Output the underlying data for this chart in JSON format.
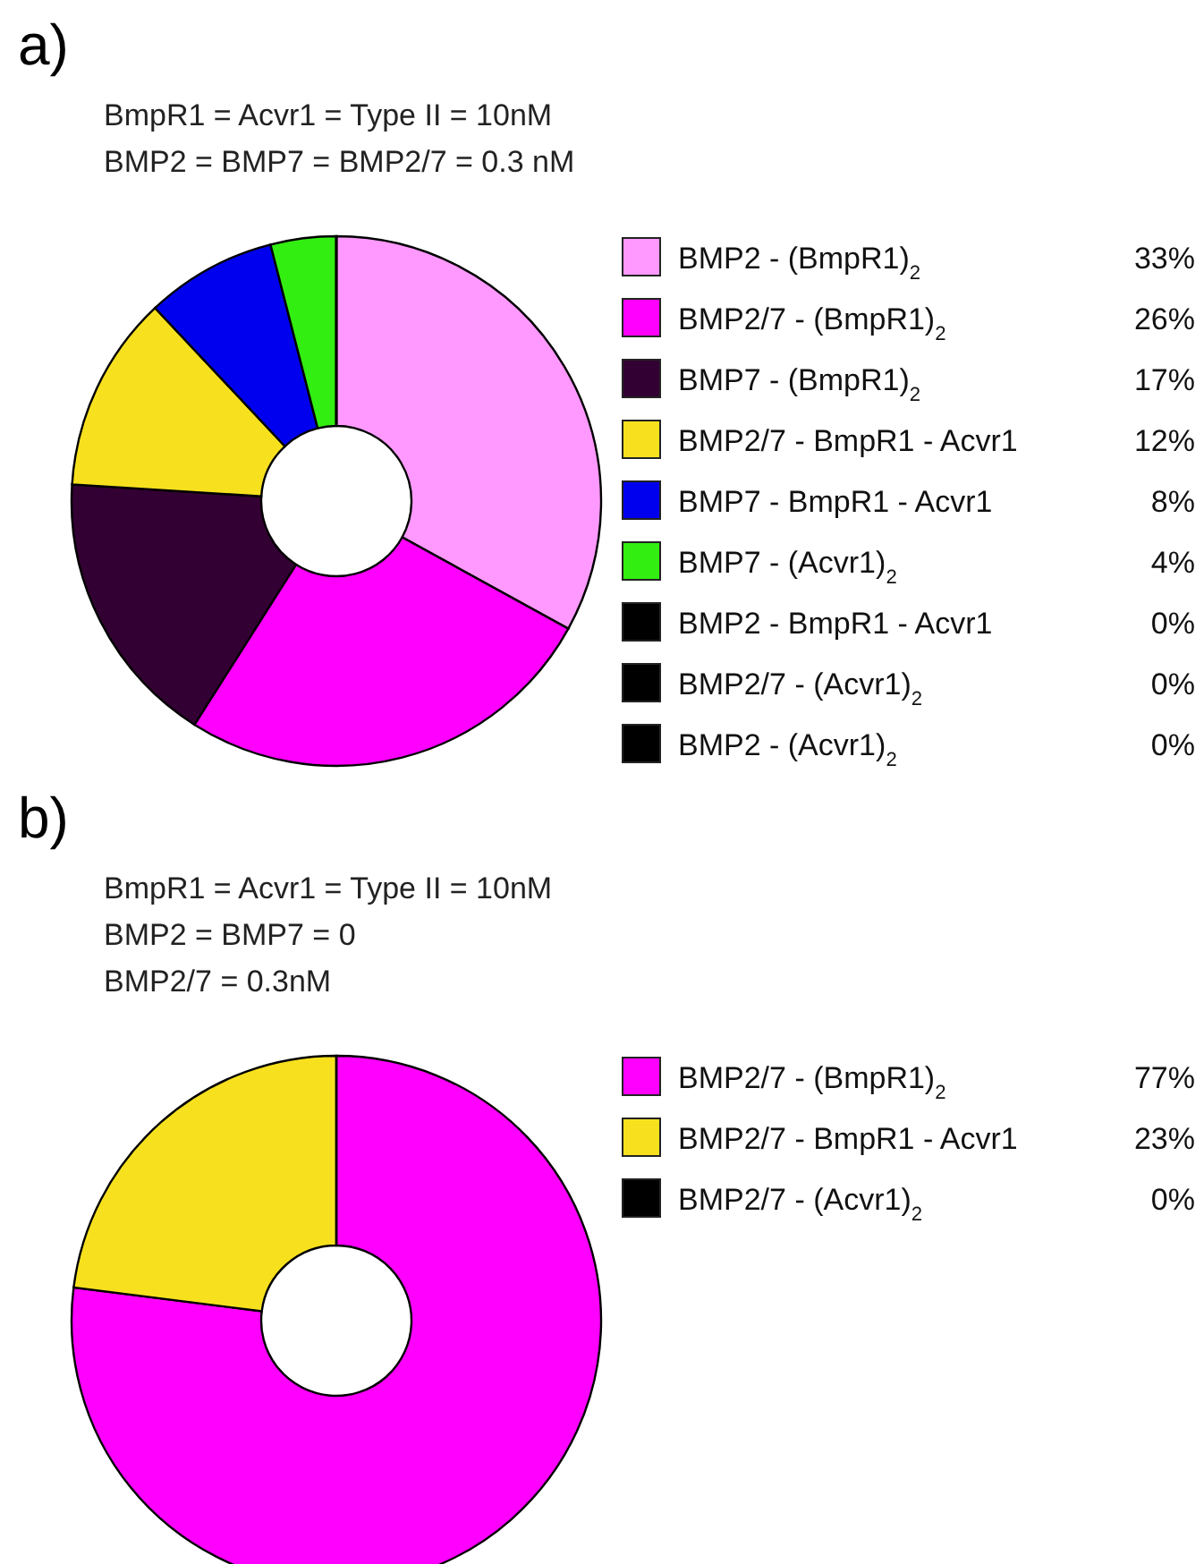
{
  "chart_data": [
    {
      "type": "donut",
      "title": "a)",
      "subtitle": "BmpR1 = Acvr1 = Type II = 10nM\nBMP2 = BMP7 = BMP2/7 = 0.3 nM",
      "legend": "right",
      "categories": [
        "BMP2 - (BmpR1)$_{2}$",
        "BMP2/7 - (BmpR1)$_{2}$",
        "BMP7 - (BmpR1)$_{2}$",
        "BMP2/7 - BmpR1 - Acvr1",
        "BMP7 - BmpR1 - Acvr1",
        "BMP7 - (Acvr1)$_{2}$",
        "BMP2 - BmpR1 - Acvr1",
        "BMP2/7 - (Acvr1)$_{2}$",
        "BMP2 - (Acvr1)$_{2}$"
      ],
      "values": [
        33,
        26,
        17,
        12,
        8,
        4,
        0,
        0,
        0
      ],
      "value_labels": [
        "33%",
        "26%",
        "17%",
        "12%",
        "8%",
        "4%",
        "0%",
        "0%",
        "0%"
      ],
      "colors": [
        "#ff99ff",
        "#ff00ff",
        "#330033",
        "#f7e11f",
        "#0000ee",
        "#33ee11",
        "#000000",
        "#000000",
        "#000000"
      ]
    },
    {
      "type": "donut",
      "title": "b)",
      "subtitle": "BmpR1 = Acvr1 = Type II = 10nM\nBMP2 = BMP7 = 0\nBMP2/7 = 0.3nM",
      "legend": "right",
      "categories": [
        "BMP2/7 - (BmpR1)$_{2}$",
        "BMP2/7 - BmpR1 - Acvr1",
        "BMP2/7 - (Acvr1)$_{2}$"
      ],
      "values": [
        77,
        23,
        0
      ],
      "value_labels": [
        "77%",
        "23%",
        "0%"
      ],
      "colors": [
        "#ff00ff",
        "#f7e11f",
        "#000000"
      ]
    }
  ]
}
